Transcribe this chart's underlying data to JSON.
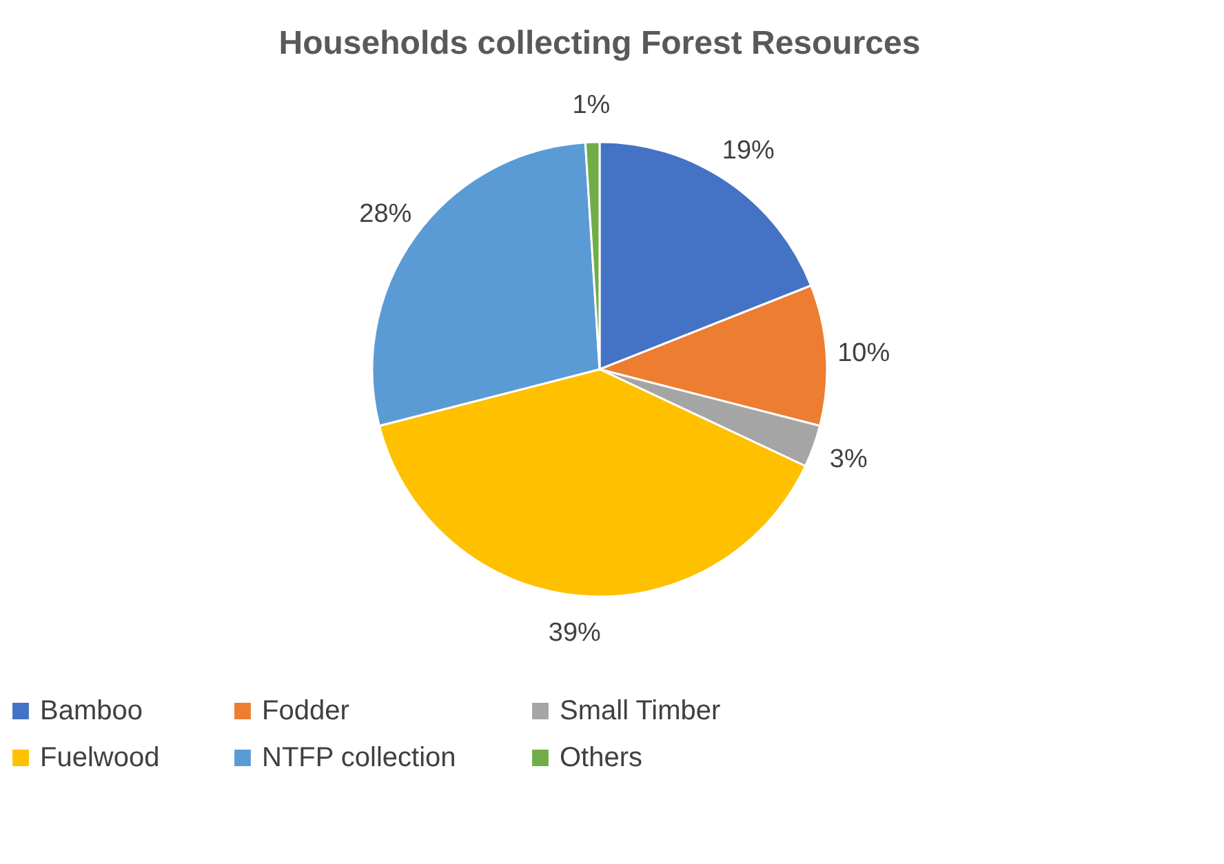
{
  "chart_data": {
    "type": "pie",
    "title": "Households collecting Forest Resources",
    "categories": [
      "Bamboo",
      "Fodder",
      "Small Timber",
      "Fuelwood",
      "NTFP collection",
      "Others"
    ],
    "values": [
      19,
      10,
      3,
      39,
      28,
      1
    ],
    "colors": [
      "#4472c4",
      "#ed7d31",
      "#a5a5a5",
      "#ffc000",
      "#5b9bd5",
      "#70ad47"
    ],
    "value_labels": [
      "19%",
      "10%",
      "3%",
      "39%",
      "28%",
      "1%"
    ],
    "legend": "bottom"
  }
}
